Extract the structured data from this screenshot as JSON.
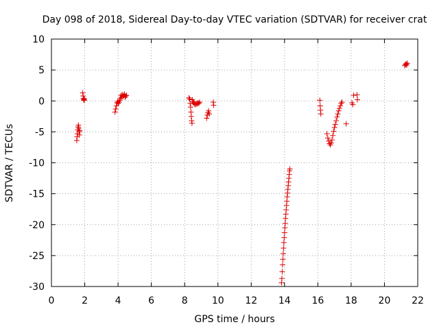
{
  "chart_data": {
    "type": "scatter",
    "title": "Day 098 of 2018, Sidereal Day-to-day VTEC variation (SDTVAR) for receiver crat",
    "xlabel": "GPS time / hours",
    "ylabel": "SDTVAR / TECUs",
    "xlim": [
      0,
      22
    ],
    "ylim": [
      -30,
      10
    ],
    "xticks": [
      0,
      2,
      4,
      6,
      8,
      10,
      12,
      14,
      16,
      18,
      20,
      22
    ],
    "yticks": [
      -30,
      -25,
      -20,
      -15,
      -10,
      -5,
      0,
      5,
      10
    ],
    "grid": true,
    "marker": "plus",
    "color": "#dd0000",
    "series": [
      {
        "name": "SDTVAR",
        "points": [
          [
            1.52,
            -6.4
          ],
          [
            1.54,
            -5.8
          ],
          [
            1.56,
            -5.3
          ],
          [
            1.58,
            -4.7
          ],
          [
            1.6,
            -4.2
          ],
          [
            1.62,
            -3.9
          ],
          [
            1.64,
            -4.4
          ],
          [
            1.66,
            -5.0
          ],
          [
            1.68,
            -5.5
          ],
          [
            1.7,
            -4.8
          ],
          [
            1.88,
            1.3
          ],
          [
            1.9,
            0.8
          ],
          [
            1.92,
            0.4
          ],
          [
            1.94,
            0.2
          ],
          [
            1.96,
            0.1
          ],
          [
            1.98,
            0.3
          ],
          [
            3.82,
            -1.8
          ],
          [
            3.86,
            -1.3
          ],
          [
            3.9,
            -0.8
          ],
          [
            3.94,
            -0.3
          ],
          [
            3.98,
            -0.1
          ],
          [
            4.02,
            -0.4
          ],
          [
            4.06,
            -0.2
          ],
          [
            4.1,
            0.1
          ],
          [
            4.14,
            0.4
          ],
          [
            4.18,
            0.9
          ],
          [
            4.22,
            0.6
          ],
          [
            4.26,
            1.0
          ],
          [
            4.3,
            0.7
          ],
          [
            4.34,
            0.9
          ],
          [
            4.38,
            1.1
          ],
          [
            4.42,
            0.6
          ],
          [
            4.46,
            0.8
          ],
          [
            4.5,
            0.9
          ],
          [
            8.26,
            0.5
          ],
          [
            8.3,
            0.3
          ],
          [
            8.33,
            -0.4
          ],
          [
            8.36,
            -1.0
          ],
          [
            8.38,
            -1.8
          ],
          [
            8.4,
            -2.5
          ],
          [
            8.42,
            -3.2
          ],
          [
            8.44,
            -3.6
          ],
          [
            8.46,
            0.2
          ],
          [
            8.5,
            -0.1
          ],
          [
            8.55,
            -0.3
          ],
          [
            8.6,
            -0.5
          ],
          [
            8.65,
            -0.6
          ],
          [
            8.7,
            -0.4
          ],
          [
            8.75,
            -0.5
          ],
          [
            8.8,
            -0.3
          ],
          [
            8.85,
            -0.4
          ],
          [
            8.9,
            -0.2
          ],
          [
            9.32,
            -2.8
          ],
          [
            9.36,
            -2.3
          ],
          [
            9.4,
            -1.9
          ],
          [
            9.44,
            -1.6
          ],
          [
            9.48,
            -2.1
          ],
          [
            9.72,
            -0.2
          ],
          [
            9.74,
            -0.7
          ],
          [
            13.82,
            -29.4
          ],
          [
            13.84,
            -28.7
          ],
          [
            13.86,
            -27.6
          ],
          [
            13.88,
            -26.5
          ],
          [
            13.9,
            -25.6
          ],
          [
            13.92,
            -24.7
          ],
          [
            13.94,
            -23.8
          ],
          [
            13.96,
            -22.9
          ],
          [
            13.98,
            -22.1
          ],
          [
            14.0,
            -21.3
          ],
          [
            14.02,
            -20.5
          ],
          [
            14.04,
            -19.8
          ],
          [
            14.06,
            -19.0
          ],
          [
            14.08,
            -18.3
          ],
          [
            14.1,
            -17.6
          ],
          [
            14.12,
            -16.9
          ],
          [
            14.14,
            -16.2
          ],
          [
            14.16,
            -15.5
          ],
          [
            14.18,
            -14.9
          ],
          [
            14.2,
            -14.3
          ],
          [
            14.22,
            -13.7
          ],
          [
            14.24,
            -13.1
          ],
          [
            14.26,
            -12.5
          ],
          [
            14.28,
            -11.9
          ],
          [
            14.3,
            -11.3
          ],
          [
            14.32,
            -11.0
          ],
          [
            16.12,
            0.1
          ],
          [
            16.14,
            -0.8
          ],
          [
            16.16,
            -1.5
          ],
          [
            16.18,
            -2.1
          ],
          [
            16.55,
            -5.3
          ],
          [
            16.6,
            -6.0
          ],
          [
            16.65,
            -6.5
          ],
          [
            16.7,
            -6.9
          ],
          [
            16.75,
            -7.1
          ],
          [
            16.8,
            -6.8
          ],
          [
            16.85,
            -6.3
          ],
          [
            16.9,
            -5.6
          ],
          [
            16.95,
            -4.9
          ],
          [
            17.0,
            -4.3
          ],
          [
            17.05,
            -3.8
          ],
          [
            17.1,
            -3.2
          ],
          [
            17.15,
            -2.6
          ],
          [
            17.2,
            -2.1
          ],
          [
            17.25,
            -1.6
          ],
          [
            17.3,
            -1.2
          ],
          [
            17.35,
            -0.8
          ],
          [
            17.4,
            -0.4
          ],
          [
            17.45,
            -0.2
          ],
          [
            17.7,
            -3.7
          ],
          [
            18.05,
            -0.3
          ],
          [
            18.1,
            -0.6
          ],
          [
            18.15,
            0.9
          ],
          [
            18.35,
            1.0
          ],
          [
            18.38,
            0.2
          ],
          [
            21.22,
            5.7
          ],
          [
            21.26,
            5.9
          ],
          [
            21.3,
            6.0
          ],
          [
            21.34,
            5.8
          ],
          [
            21.38,
            6.1
          ]
        ]
      }
    ]
  }
}
